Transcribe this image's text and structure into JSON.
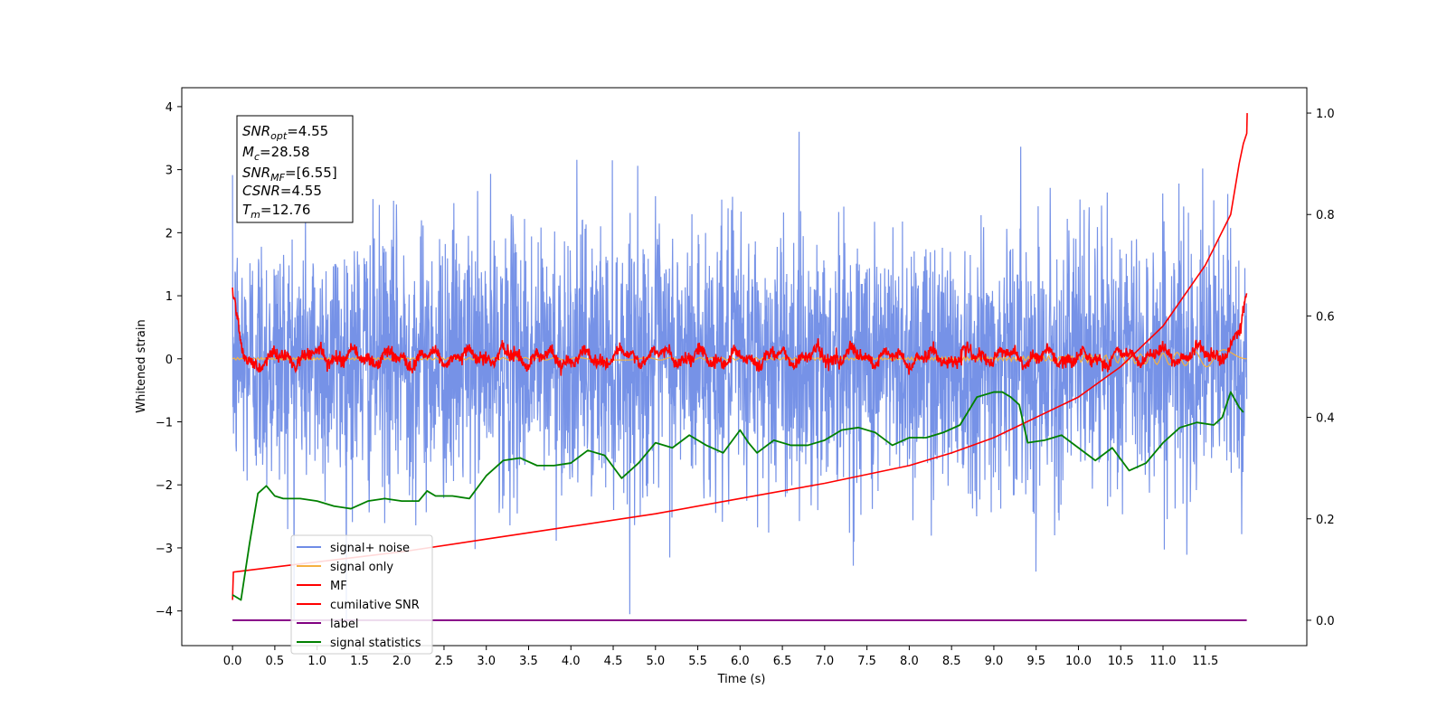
{
  "chart_data": {
    "type": "line",
    "xlabel": "Time (s)",
    "ylabel": "Whitened strain",
    "xlim": [
      -0.6,
      12.7
    ],
    "ylim": [
      -4.55,
      4.3
    ],
    "ylim_right": [
      -0.05,
      1.05
    ],
    "x_ticks": [
      0.0,
      0.5,
      1.0,
      1.5,
      2.0,
      2.5,
      3.0,
      3.5,
      4.0,
      4.5,
      5.0,
      5.5,
      6.0,
      6.5,
      7.0,
      7.5,
      8.0,
      8.5,
      9.0,
      9.5,
      10.0,
      10.5,
      11.0,
      11.5
    ],
    "x_tick_labels": [
      "0.0",
      "0.5",
      "1.0",
      "1.5",
      "2.0",
      "2.5",
      "3.0",
      "3.5",
      "4.0",
      "4.5",
      "5.0",
      "5.5",
      "6.0",
      "6.5",
      "7.0",
      "7.5",
      "8.0",
      "8.5",
      "9.0",
      "9.5",
      "10.0",
      "10.5",
      "11.0",
      "11.5"
    ],
    "y_ticks": [
      -4,
      -3,
      -2,
      -1,
      0,
      1,
      2,
      3,
      4
    ],
    "y_tick_labels": [
      "−4",
      "−3",
      "−2",
      "−1",
      "0",
      "1",
      "2",
      "3",
      "4"
    ],
    "y_ticks_right": [
      0.0,
      0.2,
      0.4,
      0.6,
      0.8,
      1.0
    ],
    "y_tick_labels_right": [
      "0.0",
      "0.2",
      "0.4",
      "0.6",
      "0.8",
      "1.0"
    ],
    "legend_position": "lower-left",
    "legend": [
      {
        "label": "signal+ noise",
        "color": "#6f8ce6"
      },
      {
        "label": "signal only",
        "color": "#f5b041"
      },
      {
        "label": "MF",
        "color": "#ff0000"
      },
      {
        "label": "cumilative SNR",
        "color": "#ff0000"
      },
      {
        "label": "label",
        "color": "#800080"
      },
      {
        "label": "signal statistics",
        "color": "#008000"
      }
    ],
    "stats_box": {
      "snr_opt": {
        "sym": "SNR",
        "sub": "opt",
        "val": "=4.55"
      },
      "mc": {
        "sym": "M",
        "sub": "c",
        "val": "=28.58"
      },
      "snr_mf": {
        "sym": "SNR",
        "sub": "MF",
        "val": "=[6.55]"
      },
      "csnr": {
        "sym": "CSNR",
        "sub": "",
        "val": "=4.55"
      },
      "tm": {
        "sym": "T",
        "sub": "m",
        "val": "=12.76"
      }
    },
    "series": [
      {
        "name": "signal+ noise",
        "axis": "left",
        "color": "#6f8ce6",
        "x_range": [
          0.0,
          11.99
        ],
        "values": "whitened gaussian noise, amplitude approx ±2.5, peaks to ±4"
      },
      {
        "name": "signal only",
        "axis": "left",
        "color": "#f5b041",
        "x_range": [
          0.0,
          11.99
        ],
        "values": "near zero"
      },
      {
        "name": "MF",
        "axis": "left",
        "color": "#ff0000",
        "x": [
          0.0,
          0.05,
          0.1,
          0.15,
          0.2,
          0.5,
          1.0,
          2.0,
          3.0,
          4.0,
          5.0,
          6.0,
          7.0,
          8.0,
          9.0,
          10.0,
          11.0,
          11.8,
          11.9,
          11.99
        ],
        "y": [
          1.0,
          0.6,
          0.15,
          0.0,
          -0.05,
          0.0,
          0.05,
          0.0,
          0.05,
          0.0,
          0.05,
          0.0,
          0.05,
          0.0,
          0.05,
          0.0,
          0.05,
          0.1,
          0.4,
          1.0
        ]
      },
      {
        "name": "cumilative SNR",
        "axis": "right",
        "color": "#ff0000",
        "x": [
          0.0,
          0.01,
          0.5,
          1.0,
          2.0,
          3.0,
          4.0,
          5.0,
          6.0,
          7.0,
          8.0,
          8.5,
          9.0,
          9.5,
          10.0,
          10.5,
          11.0,
          11.5,
          11.8,
          11.9,
          11.95,
          11.99,
          11.995
        ],
        "y": [
          0.04,
          0.095,
          0.105,
          0.115,
          0.135,
          0.16,
          0.185,
          0.21,
          0.24,
          0.27,
          0.305,
          0.33,
          0.36,
          0.4,
          0.44,
          0.5,
          0.58,
          0.7,
          0.8,
          0.9,
          0.94,
          0.96,
          1.0
        ]
      },
      {
        "name": "label",
        "axis": "right",
        "color": "#800080",
        "x": [
          0.0,
          11.99
        ],
        "y": [
          0.0,
          0.0
        ]
      },
      {
        "name": "signal statistics",
        "axis": "right",
        "color": "#008000",
        "x": [
          0.0,
          0.1,
          0.2,
          0.3,
          0.4,
          0.5,
          0.6,
          0.8,
          1.0,
          1.2,
          1.4,
          1.6,
          1.8,
          2.0,
          2.2,
          2.3,
          2.4,
          2.6,
          2.8,
          3.0,
          3.2,
          3.4,
          3.6,
          3.8,
          4.0,
          4.2,
          4.4,
          4.6,
          4.8,
          5.0,
          5.2,
          5.4,
          5.6,
          5.8,
          6.0,
          6.1,
          6.2,
          6.4,
          6.6,
          6.8,
          7.0,
          7.2,
          7.4,
          7.6,
          7.8,
          8.0,
          8.2,
          8.4,
          8.6,
          8.8,
          9.0,
          9.1,
          9.2,
          9.3,
          9.4,
          9.6,
          9.8,
          10.0,
          10.2,
          10.4,
          10.6,
          10.8,
          11.0,
          11.2,
          11.4,
          11.6,
          11.7,
          11.8,
          11.9,
          11.95
        ],
        "y": [
          0.05,
          0.04,
          0.15,
          0.25,
          0.265,
          0.245,
          0.24,
          0.24,
          0.235,
          0.225,
          0.22,
          0.235,
          0.24,
          0.235,
          0.235,
          0.255,
          0.245,
          0.245,
          0.24,
          0.285,
          0.315,
          0.32,
          0.305,
          0.305,
          0.31,
          0.335,
          0.325,
          0.28,
          0.31,
          0.35,
          0.34,
          0.365,
          0.345,
          0.33,
          0.375,
          0.35,
          0.33,
          0.355,
          0.345,
          0.345,
          0.355,
          0.375,
          0.38,
          0.37,
          0.345,
          0.36,
          0.36,
          0.37,
          0.385,
          0.44,
          0.45,
          0.45,
          0.44,
          0.425,
          0.35,
          0.355,
          0.365,
          0.34,
          0.315,
          0.34,
          0.295,
          0.31,
          0.35,
          0.38,
          0.39,
          0.385,
          0.4,
          0.45,
          0.42,
          0.41
        ]
      }
    ]
  }
}
